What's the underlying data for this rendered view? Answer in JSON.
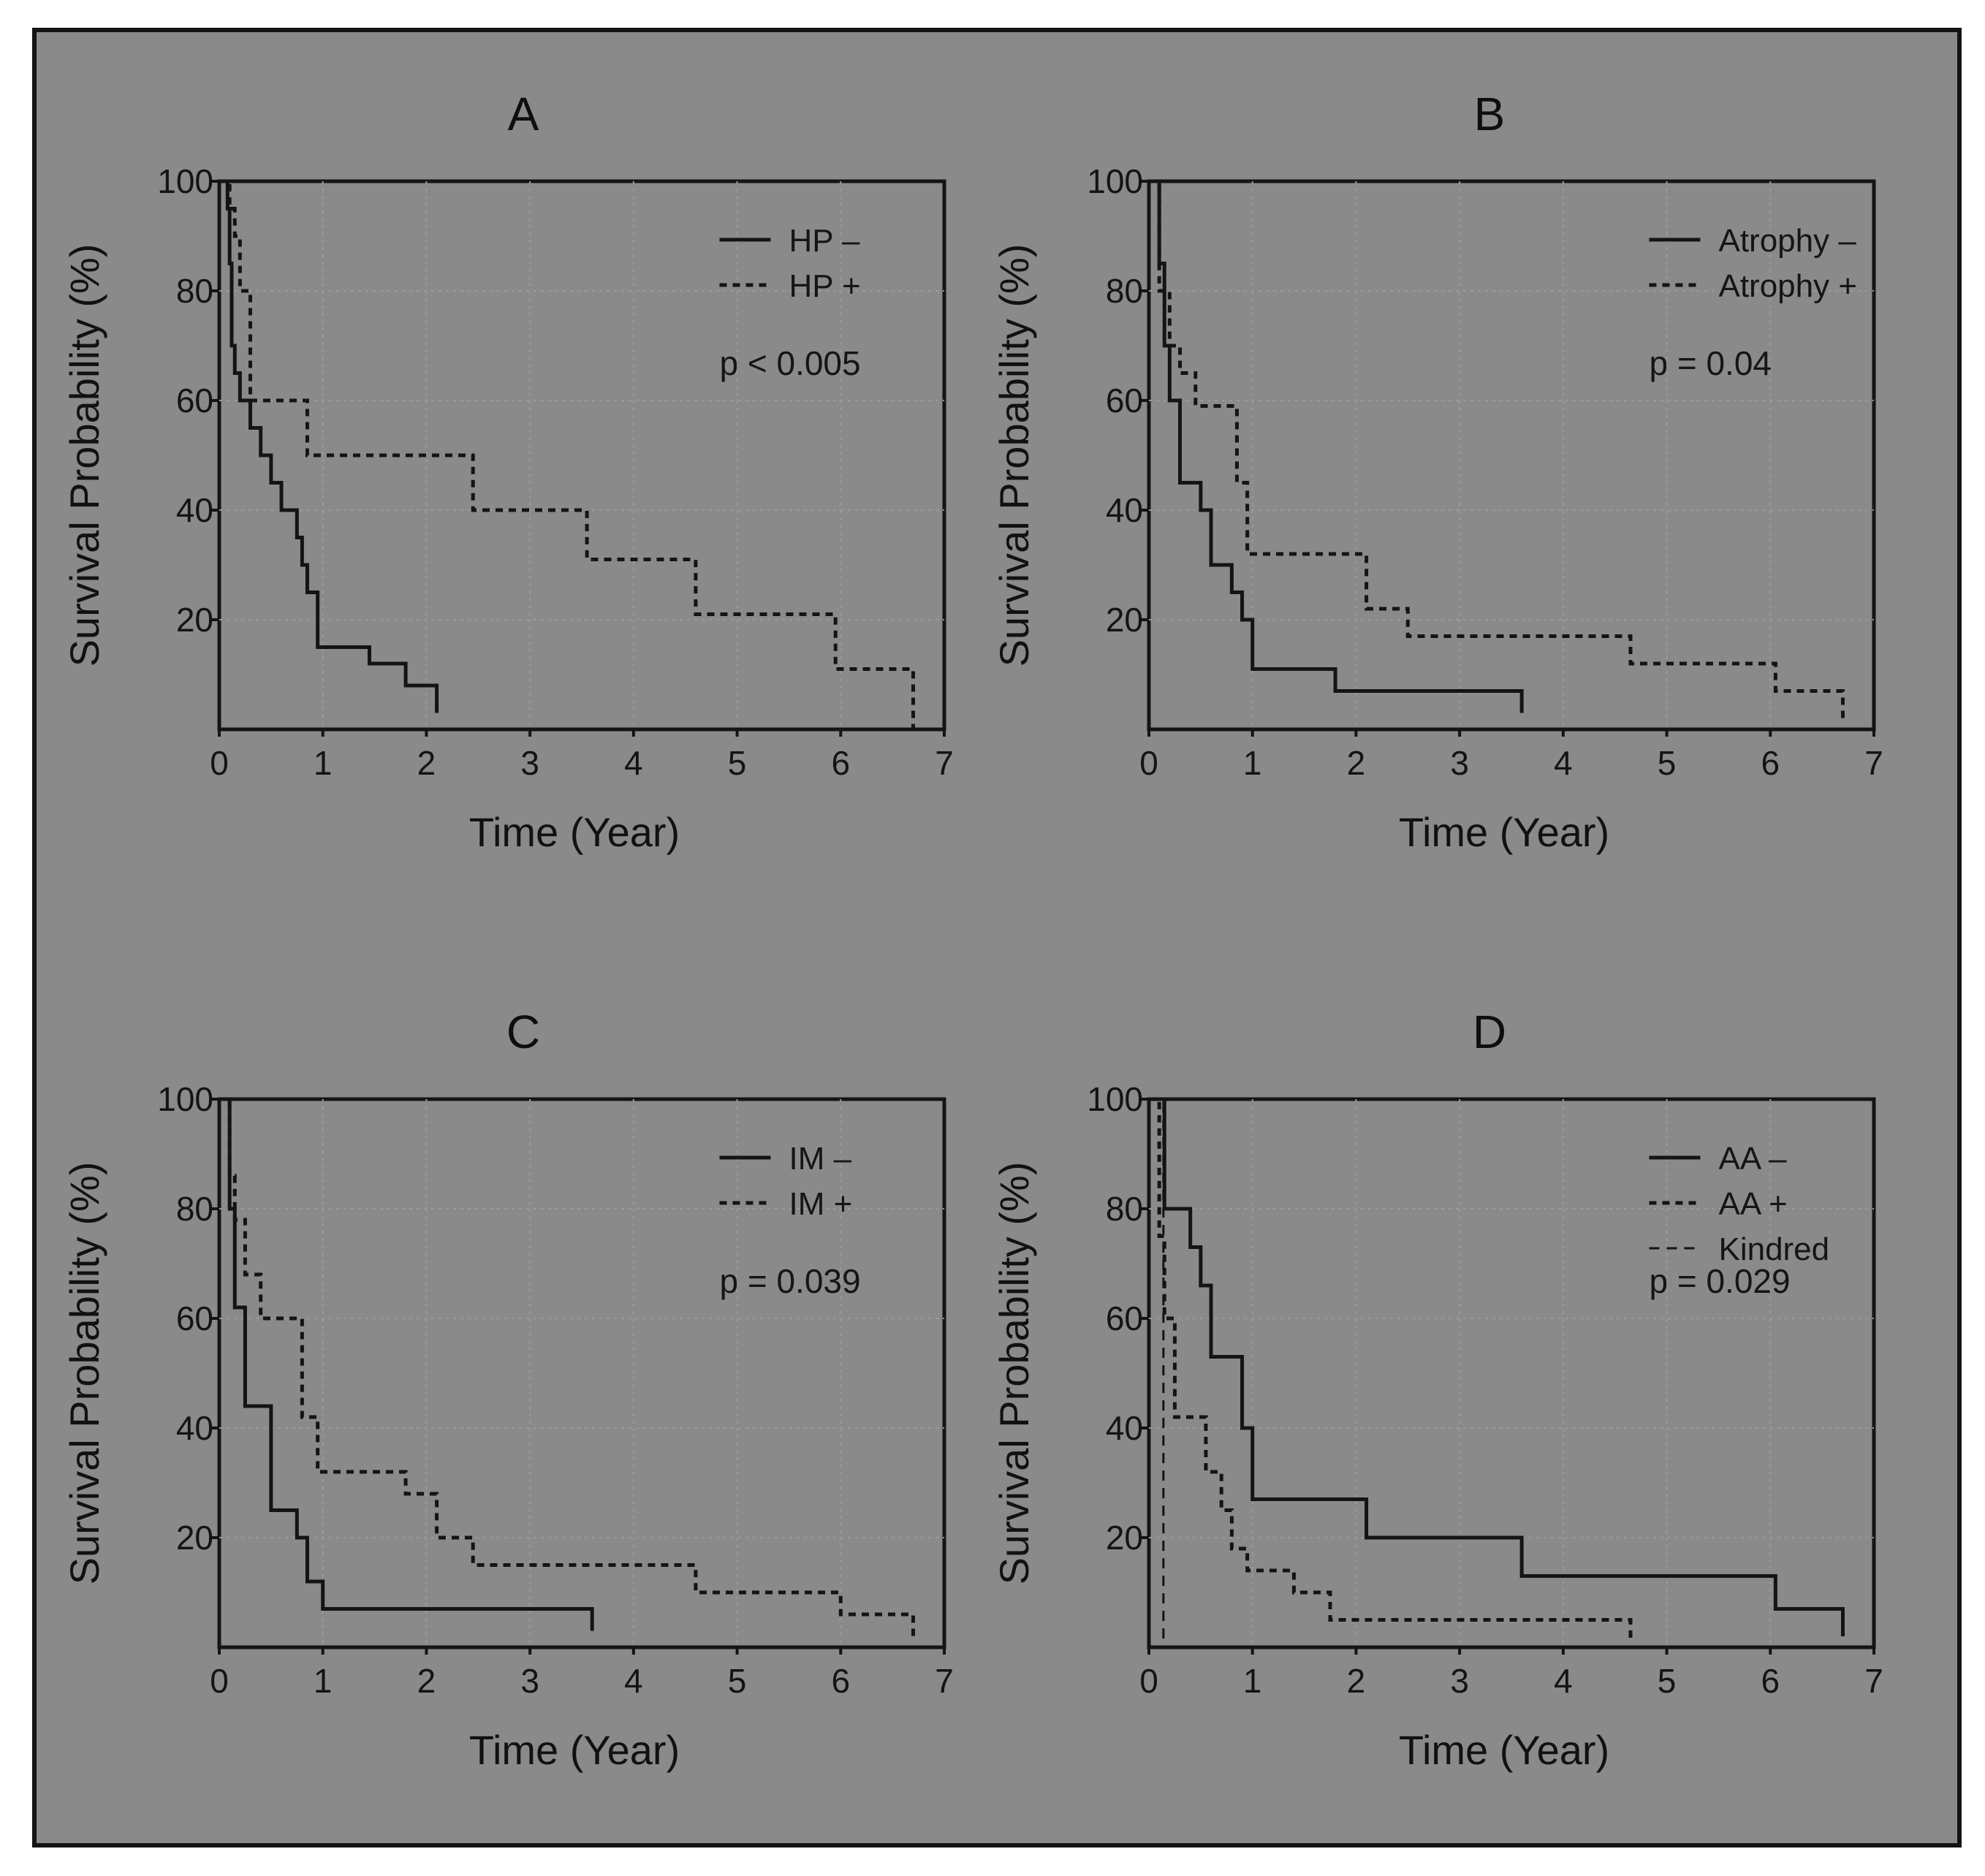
{
  "colors": {
    "background": "#8a8a8a",
    "ink": "#141414",
    "grid": "#9a9a9a"
  },
  "chart_data": [
    {
      "id": "A",
      "type": "line",
      "title": "A",
      "xlabel": "Time (Year)",
      "ylabel": "Survival Probability (%)",
      "xlim": [
        0,
        7
      ],
      "ylim": [
        0,
        100
      ],
      "x_ticks": [
        "0",
        "1",
        "2",
        "3",
        "4",
        "5",
        "6",
        "7"
      ],
      "y_ticks": [
        "20",
        "40",
        "60",
        "80",
        "100"
      ],
      "annotation": "p < 0.005",
      "legend_position": "top-right",
      "series": [
        {
          "name": "HP –",
          "style": "solid",
          "x": [
            0,
            0.08,
            0.1,
            0.12,
            0.15,
            0.2,
            0.3,
            0.4,
            0.5,
            0.6,
            0.75,
            0.8,
            0.85,
            0.95,
            1.45,
            1.8,
            2.1
          ],
          "y": [
            100,
            95,
            85,
            70,
            65,
            60,
            55,
            50,
            45,
            40,
            35,
            30,
            25,
            15,
            12,
            8,
            3
          ]
        },
        {
          "name": "HP +",
          "style": "dotted",
          "x": [
            0,
            0.1,
            0.15,
            0.2,
            0.3,
            0.85,
            2.45,
            3.55,
            4.6,
            5.95,
            6.7
          ],
          "y": [
            100,
            95,
            90,
            80,
            60,
            50,
            40,
            31,
            21,
            11,
            0
          ]
        }
      ]
    },
    {
      "id": "B",
      "type": "line",
      "title": "B",
      "xlabel": "Time (Year)",
      "ylabel": "Survival Probability (%)",
      "xlim": [
        0,
        7
      ],
      "ylim": [
        0,
        100
      ],
      "x_ticks": [
        "0",
        "1",
        "2",
        "3",
        "4",
        "5",
        "6",
        "7"
      ],
      "y_ticks": [
        "20",
        "40",
        "60",
        "80",
        "100"
      ],
      "annotation": "p = 0.04",
      "legend_position": "top-right",
      "series": [
        {
          "name": "Atrophy –",
          "style": "solid",
          "x": [
            0,
            0.1,
            0.15,
            0.2,
            0.3,
            0.5,
            0.6,
            0.8,
            0.9,
            1.0,
            1.8,
            3.6
          ],
          "y": [
            100,
            85,
            70,
            60,
            45,
            40,
            30,
            25,
            20,
            11,
            7,
            3
          ]
        },
        {
          "name": "Atrophy +",
          "style": "dotted",
          "x": [
            0,
            0.1,
            0.2,
            0.3,
            0.45,
            0.85,
            0.95,
            2.1,
            2.5,
            4.65,
            6.05,
            6.7
          ],
          "y": [
            100,
            80,
            70,
            65,
            59,
            45,
            32,
            22,
            17,
            12,
            7,
            1
          ]
        }
      ]
    },
    {
      "id": "C",
      "type": "line",
      "title": "C",
      "xlabel": "Time (Year)",
      "ylabel": "Survival Probability (%)",
      "xlim": [
        0,
        7
      ],
      "ylim": [
        0,
        100
      ],
      "x_ticks": [
        "0",
        "1",
        "2",
        "3",
        "4",
        "5",
        "6",
        "7"
      ],
      "y_ticks": [
        "20",
        "40",
        "60",
        "80",
        "100"
      ],
      "annotation": "p = 0.039",
      "legend_position": "top-right",
      "series": [
        {
          "name": "IM –",
          "style": "solid",
          "x": [
            0,
            0.1,
            0.15,
            0.25,
            0.5,
            0.75,
            0.85,
            1.0,
            3.6
          ],
          "y": [
            100,
            80,
            62,
            44,
            25,
            20,
            12,
            7,
            3
          ]
        },
        {
          "name": "IM +",
          "style": "dotted",
          "x": [
            0,
            0.1,
            0.15,
            0.25,
            0.4,
            0.8,
            0.95,
            1.8,
            2.1,
            2.45,
            4.6,
            6.0,
            6.7
          ],
          "y": [
            100,
            86,
            78,
            68,
            60,
            42,
            32,
            28,
            20,
            15,
            10,
            6,
            1
          ]
        }
      ]
    },
    {
      "id": "D",
      "type": "line",
      "title": "D",
      "xlabel": "Time (Year)",
      "ylabel": "Survival Probability (%)",
      "xlim": [
        0,
        7
      ],
      "ylim": [
        0,
        100
      ],
      "x_ticks": [
        "0",
        "1",
        "2",
        "3",
        "4",
        "5",
        "6",
        "7"
      ],
      "y_ticks": [
        "20",
        "40",
        "60",
        "80",
        "100"
      ],
      "annotation": "p = 0.029",
      "legend_position": "top-right",
      "series": [
        {
          "name": "AA –",
          "style": "solid",
          "x": [
            0,
            0.15,
            0.4,
            0.5,
            0.6,
            0.9,
            1.0,
            2.1,
            3.6,
            6.05,
            6.7
          ],
          "y": [
            100,
            80,
            73,
            66,
            53,
            40,
            27,
            20,
            13,
            7,
            2
          ]
        },
        {
          "name": "AA +",
          "style": "dotted",
          "x": [
            0,
            0.1,
            0.15,
            0.25,
            0.55,
            0.7,
            0.8,
            0.95,
            1.4,
            1.75,
            4.65
          ],
          "y": [
            100,
            75,
            60,
            42,
            32,
            25,
            18,
            14,
            10,
            5,
            1
          ]
        },
        {
          "name": "Kindred",
          "style": "dashed",
          "x": [
            0,
            0.13,
            0.14
          ],
          "y": [
            100,
            100,
            0
          ]
        }
      ]
    }
  ]
}
